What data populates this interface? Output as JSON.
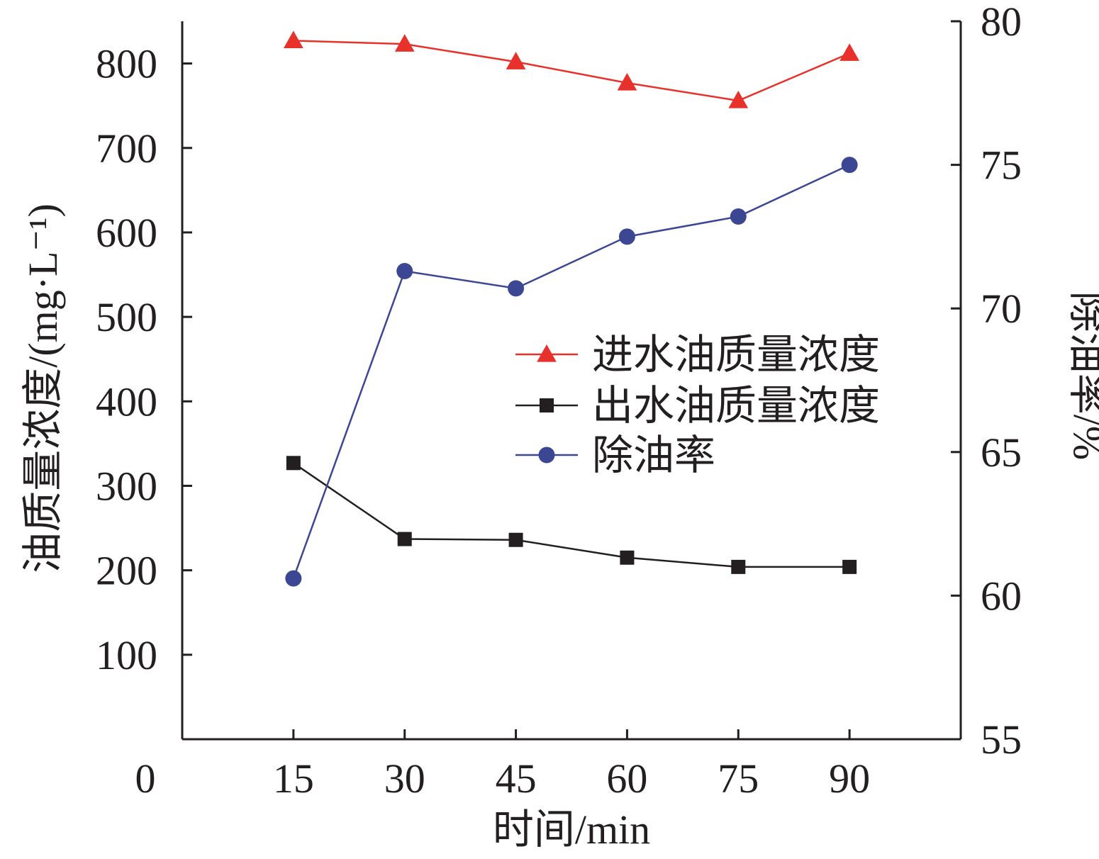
{
  "chart_data": {
    "type": "line",
    "x": [
      15,
      30,
      45,
      60,
      75,
      90
    ],
    "xlabel": "时间/min",
    "ylabel_left": "油质量浓度/(mg·L⁻¹)",
    "ylabel_right": "除油率/%",
    "x_ticks": [
      "0",
      "15",
      "30",
      "45",
      "60",
      "75",
      "90"
    ],
    "y_left_ticks": [
      "100",
      "200",
      "300",
      "400",
      "500",
      "600",
      "700",
      "800"
    ],
    "y_right_ticks": [
      "55",
      "60",
      "65",
      "70",
      "75",
      "80"
    ],
    "xlim": [
      0,
      105
    ],
    "ylim_left": [
      0,
      850
    ],
    "ylim_right": [
      55,
      80
    ],
    "grid": false,
    "legend_position": "center-right",
    "series": [
      {
        "name": "进水油质量浓度",
        "axis": "left",
        "marker": "triangle",
        "color": "#e8312a",
        "values": [
          827,
          823,
          802,
          777,
          756,
          812
        ]
      },
      {
        "name": "出水油质量浓度",
        "axis": "left",
        "marker": "square",
        "color": "#231f20",
        "values": [
          327,
          237,
          236,
          215,
          204,
          204
        ]
      },
      {
        "name": "除油率",
        "axis": "right",
        "marker": "circle",
        "color": "#3b4793",
        "values": [
          60.6,
          71.3,
          70.7,
          72.5,
          73.2,
          75.0
        ]
      }
    ]
  }
}
